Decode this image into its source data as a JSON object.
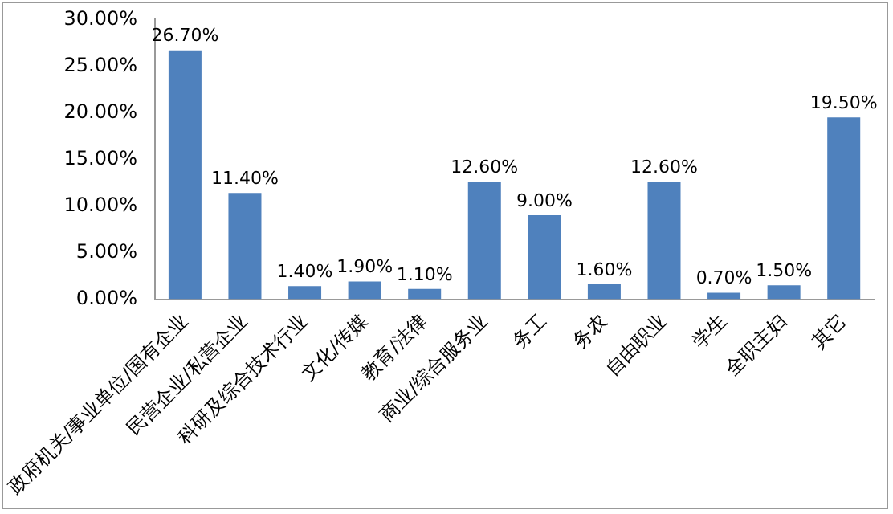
{
  "chart_data": {
    "type": "bar",
    "categories": [
      "政府机关/事业单位/国有企业",
      "民营企业/私营企业",
      "科研及综合技术行业",
      "文化/传媒",
      "教育/法律",
      "商业/综合服务业",
      "务工",
      "务农",
      "自由职业",
      "学生",
      "全职主妇",
      "其它"
    ],
    "values": [
      26.7,
      11.4,
      1.4,
      1.9,
      1.1,
      12.6,
      9.0,
      1.6,
      12.6,
      0.7,
      1.5,
      19.5
    ],
    "value_labels": [
      "26.70%",
      "11.40%",
      "1.40%",
      "1.90%",
      "1.10%",
      "12.60%",
      "9.00%",
      "1.60%",
      "12.60%",
      "0.70%",
      "1.50%",
      "19.50%"
    ],
    "color": "#4f81bd",
    "ylim": [
      0,
      30
    ],
    "yticks": [
      {
        "value": 0,
        "label": "0.00%"
      },
      {
        "value": 5,
        "label": "5.00%"
      },
      {
        "value": 10,
        "label": "10.00%"
      },
      {
        "value": 15,
        "label": "15.00%"
      },
      {
        "value": 20,
        "label": "20.00%"
      },
      {
        "value": 25,
        "label": "25.00%"
      },
      {
        "value": 30,
        "label": "30.00%"
      }
    ],
    "grid": false
  }
}
